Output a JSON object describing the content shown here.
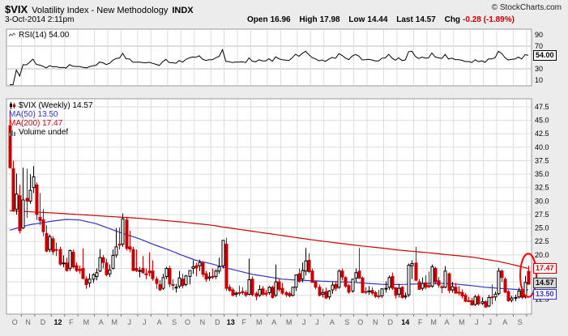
{
  "header": {
    "symbol": "$VIX",
    "name": "Volatility Index - New Methodology",
    "exchange": "INDX",
    "credit": "© StockCharts.com",
    "datetime": "3-Oct-2014 2:11pm",
    "quote": {
      "open_label": "Open",
      "open": "16.96",
      "high_label": "High",
      "high": "17.98",
      "low_label": "Low",
      "low": "14.44",
      "last_label": "Last",
      "last": "14.57",
      "chg_label": "Chg",
      "chg": "-0.28 (-1.89%)"
    }
  },
  "rsi_panel": {
    "legend": "RSI(14) 54.00",
    "value_box": "54.00"
  },
  "price_panel": {
    "legend_main": "$VIX (Weekly) 14.57",
    "legend_ma50": "MA(50) 13.50",
    "legend_ma200": "MA(200) 17.47",
    "legend_volume": "Volume undef",
    "box_ma200": "17.47",
    "box_last": "14.57",
    "box_ma50": "13.50"
  },
  "colors": {
    "up": "#000000",
    "down": "#cc0000",
    "ma50": "#3333cc",
    "ma200": "#cc0000",
    "rsi": "#000000",
    "annotation": "#ff0000",
    "grid": "#dddddd",
    "band": "#bbbbbb",
    "panel_border": "#999999",
    "neg": "#cc0000"
  },
  "chart_data": {
    "type": "candlestick",
    "title": "$VIX (Weekly)",
    "symbol": "$VIX",
    "period": "Weekly",
    "last": 14.57,
    "ma50_last": 13.5,
    "ma200_last": 17.47,
    "rsi_period": 14,
    "rsi_last": 54.0,
    "ylim": [
      9,
      49
    ],
    "grid_step": 2.5,
    "price_ticks": [
      47.5,
      45.0,
      42.5,
      40.0,
      37.5,
      35.0,
      32.5,
      30.0,
      27.5,
      25.0,
      22.5,
      20.0,
      12.5
    ],
    "rsi_ticks": [
      90,
      70,
      30,
      10
    ],
    "rsi_bands": [
      70,
      30
    ],
    "months": [
      {
        "label": "O",
        "weeks": 4,
        "year": false
      },
      {
        "label": "N",
        "weeks": 4,
        "year": false
      },
      {
        "label": "D",
        "weeks": 5,
        "year": false
      },
      {
        "label": "12",
        "weeks": 4,
        "year": true
      },
      {
        "label": "F",
        "weeks": 4,
        "year": false
      },
      {
        "label": "M",
        "weeks": 5,
        "year": false
      },
      {
        "label": "A",
        "weeks": 4,
        "year": false
      },
      {
        "label": "M",
        "weeks": 4,
        "year": false
      },
      {
        "label": "J",
        "weeks": 5,
        "year": false
      },
      {
        "label": "J",
        "weeks": 4,
        "year": false
      },
      {
        "label": "A",
        "weeks": 5,
        "year": false
      },
      {
        "label": "S",
        "weeks": 4,
        "year": false
      },
      {
        "label": "O",
        "weeks": 4,
        "year": false
      },
      {
        "label": "N",
        "weeks": 5,
        "year": false
      },
      {
        "label": "D",
        "weeks": 4,
        "year": false
      },
      {
        "label": "13",
        "weeks": 4,
        "year": true
      },
      {
        "label": "F",
        "weeks": 4,
        "year": false
      },
      {
        "label": "M",
        "weeks": 5,
        "year": false
      },
      {
        "label": "A",
        "weeks": 4,
        "year": false
      },
      {
        "label": "M",
        "weeks": 5,
        "year": false
      },
      {
        "label": "J",
        "weeks": 4,
        "year": false
      },
      {
        "label": "J",
        "weeks": 4,
        "year": false
      },
      {
        "label": "A",
        "weeks": 5,
        "year": false
      },
      {
        "label": "S",
        "weeks": 4,
        "year": false
      },
      {
        "label": "O",
        "weeks": 4,
        "year": false
      },
      {
        "label": "N",
        "weeks": 5,
        "year": false
      },
      {
        "label": "D",
        "weeks": 4,
        "year": false
      },
      {
        "label": "14",
        "weeks": 5,
        "year": true
      },
      {
        "label": "F",
        "weeks": 4,
        "year": false
      },
      {
        "label": "M",
        "weeks": 4,
        "year": false
      },
      {
        "label": "A",
        "weeks": 4,
        "year": false
      },
      {
        "label": "M",
        "weeks": 5,
        "year": false
      },
      {
        "label": "J",
        "weeks": 4,
        "year": false
      },
      {
        "label": "J",
        "weeks": 4,
        "year": false
      },
      {
        "label": "A",
        "weeks": 5,
        "year": false
      },
      {
        "label": "S",
        "weeks": 4,
        "year": false
      },
      {
        "label": "",
        "weeks": 1,
        "year": false
      }
    ],
    "ohlc": [
      [
        44.0,
        46.9,
        36.0,
        36.2
      ],
      [
        36.0,
        37.5,
        28.0,
        28.2
      ],
      [
        28.5,
        35.1,
        27.5,
        31.3
      ],
      [
        31.0,
        33.0,
        24.0,
        24.5
      ],
      [
        25.0,
        36.2,
        24.8,
        30.2
      ],
      [
        30.5,
        36.0,
        26.9,
        30.0
      ],
      [
        30.0,
        35.0,
        29.5,
        32.0
      ],
      [
        32.5,
        36.5,
        31.5,
        34.5
      ],
      [
        33.0,
        33.5,
        26.5,
        27.5
      ],
      [
        27.0,
        31.5,
        25.5,
        26.4
      ],
      [
        26.5,
        28.5,
        23.5,
        24.3
      ],
      [
        24.0,
        25.5,
        20.5,
        20.7
      ],
      [
        21.0,
        23.8,
        20.5,
        23.4
      ],
      [
        23.0,
        23.5,
        20.0,
        20.6
      ],
      [
        21.0,
        22.3,
        19.8,
        20.9
      ],
      [
        21.0,
        21.5,
        18.0,
        18.3
      ],
      [
        18.5,
        19.9,
        17.7,
        18.5
      ],
      [
        18.5,
        19.5,
        16.9,
        17.1
      ],
      [
        17.5,
        21.0,
        17.0,
        20.8
      ],
      [
        20.5,
        21.0,
        17.5,
        17.8
      ],
      [
        18.0,
        18.6,
        16.8,
        17.1
      ],
      [
        17.3,
        18.0,
        16.5,
        17.1
      ],
      [
        17.5,
        21.2,
        15.5,
        15.6
      ],
      [
        15.5,
        16.0,
        13.7,
        14.5
      ],
      [
        14.8,
        16.5,
        14.0,
        15.5
      ],
      [
        15.5,
        16.6,
        14.8,
        16.3
      ],
      [
        16.0,
        17.5,
        15.3,
        16.7
      ],
      [
        17.0,
        21.1,
        16.8,
        19.5
      ],
      [
        19.5,
        20.0,
        17.5,
        18.6
      ],
      [
        18.5,
        19.3,
        16.0,
        16.3
      ],
      [
        16.5,
        18.2,
        15.9,
        17.2
      ],
      [
        17.5,
        21.0,
        17.3,
        19.9
      ],
      [
        20.0,
        25.0,
        19.5,
        21.5
      ],
      [
        22.0,
        25.1,
        21.0,
        21.8
      ],
      [
        22.0,
        27.7,
        21.5,
        26.7
      ],
      [
        26.5,
        27.0,
        20.8,
        21.2
      ],
      [
        21.5,
        24.5,
        20.5,
        21.1
      ],
      [
        21.0,
        21.5,
        17.0,
        17.1
      ],
      [
        17.5,
        21.0,
        16.8,
        17.1
      ],
      [
        17.0,
        17.8,
        15.8,
        17.1
      ],
      [
        17.5,
        19.8,
        16.5,
        16.7
      ],
      [
        16.5,
        17.5,
        15.5,
        16.3
      ],
      [
        17.0,
        20.5,
        16.0,
        16.7
      ],
      [
        17.0,
        19.0,
        15.2,
        15.6
      ],
      [
        15.5,
        16.0,
        13.7,
        14.7
      ],
      [
        14.5,
        15.3,
        13.3,
        13.5
      ],
      [
        13.8,
        16.5,
        13.5,
        15.8
      ],
      [
        16.0,
        17.8,
        15.5,
        17.5
      ],
      [
        17.5,
        18.0,
        14.0,
        14.6
      ],
      [
        14.5,
        15.5,
        13.5,
        14.4
      ],
      [
        14.0,
        14.6,
        13.0,
        14.0
      ],
      [
        14.2,
        17.0,
        13.8,
        15.7
      ],
      [
        15.5,
        16.5,
        13.8,
        14.3
      ],
      [
        14.5,
        16.3,
        14.2,
        16.1
      ],
      [
        16.0,
        17.1,
        14.5,
        17.1
      ],
      [
        17.5,
        19.0,
        16.5,
        17.8
      ],
      [
        18.0,
        18.5,
        16.0,
        17.6
      ],
      [
        18.0,
        19.1,
        17.0,
        18.6
      ],
      [
        18.5,
        18.8,
        15.9,
        16.4
      ],
      [
        16.5,
        17.0,
        15.0,
        15.5
      ],
      [
        15.7,
        16.8,
        15.2,
        15.9
      ],
      [
        16.0,
        17.5,
        15.5,
        15.9
      ],
      [
        16.0,
        17.3,
        15.5,
        17.0
      ],
      [
        17.0,
        19.5,
        16.5,
        17.8
      ],
      [
        18.0,
        22.7,
        17.5,
        22.7
      ],
      [
        22.0,
        23.2,
        13.3,
        13.8
      ],
      [
        14.0,
        14.5,
        13.2,
        13.4
      ],
      [
        13.5,
        13.9,
        12.3,
        12.5
      ],
      [
        12.7,
        13.2,
        12.2,
        12.9
      ],
      [
        13.0,
        14.3,
        12.4,
        12.9
      ],
      [
        13.2,
        14.0,
        12.6,
        13.0
      ],
      [
        13.0,
        13.5,
        12.2,
        12.5
      ],
      [
        12.7,
        19.3,
        12.5,
        15.4
      ],
      [
        15.5,
        16.0,
        12.3,
        12.6
      ],
      [
        12.8,
        13.2,
        11.6,
        12.3
      ],
      [
        12.5,
        14.4,
        12.2,
        13.6
      ],
      [
        13.7,
        14.2,
        12.4,
        12.7
      ],
      [
        12.9,
        13.5,
        12.3,
        12.7
      ],
      [
        13.0,
        14.2,
        12.6,
        14.0
      ],
      [
        14.0,
        14.3,
        11.9,
        12.1
      ],
      [
        12.5,
        18.2,
        12.2,
        15.0
      ],
      [
        15.0,
        15.5,
        13.2,
        13.6
      ],
      [
        13.8,
        14.8,
        12.6,
        12.9
      ],
      [
        13.0,
        13.3,
        12.2,
        12.6
      ],
      [
        12.8,
        13.2,
        12.1,
        12.4
      ],
      [
        12.5,
        14.1,
        12.3,
        14.0
      ],
      [
        14.0,
        16.3,
        13.3,
        16.3
      ],
      [
        16.5,
        17.5,
        14.8,
        15.1
      ],
      [
        15.5,
        18.6,
        14.9,
        17.1
      ],
      [
        17.0,
        21.3,
        16.2,
        18.9
      ],
      [
        19.0,
        20.3,
        16.6,
        16.9
      ],
      [
        17.0,
        17.5,
        14.8,
        14.9
      ],
      [
        15.0,
        15.2,
        13.6,
        14.0
      ],
      [
        14.0,
        14.5,
        12.3,
        12.5
      ],
      [
        12.7,
        13.7,
        12.1,
        13.0
      ],
      [
        13.2,
        13.9,
        11.8,
        12.0
      ],
      [
        12.2,
        13.5,
        11.7,
        13.3
      ],
      [
        13.5,
        15.0,
        12.8,
        14.4
      ],
      [
        14.5,
        15.1,
        13.3,
        13.8
      ],
      [
        14.0,
        17.3,
        13.7,
        17.0
      ],
      [
        17.0,
        17.5,
        15.3,
        15.9
      ],
      [
        15.8,
        16.0,
        13.9,
        14.2
      ],
      [
        14.3,
        14.6,
        12.8,
        13.1
      ],
      [
        13.3,
        15.0,
        13.0,
        15.5
      ],
      [
        15.7,
        17.5,
        15.0,
        16.7
      ],
      [
        17.0,
        21.3,
        15.5,
        15.7
      ],
      [
        15.7,
        16.0,
        12.9,
        13.0
      ],
      [
        13.2,
        14.0,
        12.7,
        13.1
      ],
      [
        13.3,
        14.2,
        12.6,
        13.3
      ],
      [
        13.4,
        14.0,
        12.5,
        12.9
      ],
      [
        13.0,
        13.3,
        12.0,
        12.3
      ],
      [
        12.4,
        13.5,
        11.9,
        12.3
      ],
      [
        12.4,
        13.8,
        12.0,
        13.7
      ],
      [
        13.8,
        15.1,
        13.0,
        13.8
      ],
      [
        14.0,
        16.2,
        13.5,
        15.8
      ],
      [
        16.0,
        16.7,
        13.5,
        13.8
      ],
      [
        13.9,
        14.0,
        11.9,
        12.5
      ],
      [
        12.7,
        14.6,
        12.1,
        13.8
      ],
      [
        14.0,
        14.2,
        11.9,
        12.1
      ],
      [
        12.2,
        13.0,
        11.8,
        12.4
      ],
      [
        12.6,
        18.4,
        12.2,
        18.1
      ],
      [
        18.0,
        19.0,
        15.5,
        18.4
      ],
      [
        18.5,
        21.5,
        15.1,
        15.3
      ],
      [
        15.0,
        15.5,
        13.5,
        13.6
      ],
      [
        13.8,
        15.8,
        13.4,
        14.7
      ],
      [
        14.8,
        16.2,
        13.6,
        14.0
      ],
      [
        14.3,
        16.9,
        13.8,
        14.1
      ],
      [
        14.2,
        18.2,
        13.9,
        17.8
      ],
      [
        17.5,
        17.8,
        14.5,
        15.0
      ],
      [
        15.2,
        15.9,
        13.9,
        14.4
      ],
      [
        14.1,
        14.4,
        12.9,
        13.9
      ],
      [
        14.0,
        17.9,
        13.8,
        17.0
      ],
      [
        16.5,
        16.7,
        12.9,
        13.4
      ],
      [
        13.5,
        15.0,
        13.0,
        14.1
      ],
      [
        14.0,
        14.8,
        12.9,
        12.9
      ],
      [
        13.1,
        14.2,
        12.5,
        12.9
      ],
      [
        13.0,
        13.6,
        11.9,
        12.4
      ],
      [
        12.5,
        12.9,
        11.2,
        11.4
      ],
      [
        11.5,
        12.2,
        11.2,
        11.4
      ],
      [
        11.5,
        12.0,
        10.6,
        10.7
      ],
      [
        10.8,
        12.6,
        10.5,
        12.2
      ],
      [
        12.3,
        12.7,
        10.6,
        10.9
      ],
      [
        11.0,
        12.1,
        10.7,
        11.3
      ],
      [
        11.3,
        11.6,
        10.2,
        10.3
      ],
      [
        10.5,
        12.6,
        10.3,
        12.1
      ],
      [
        12.2,
        14.5,
        10.8,
        12.1
      ],
      [
        12.2,
        13.2,
        11.5,
        12.7
      ],
      [
        12.8,
        17.6,
        12.5,
        17.0
      ],
      [
        17.0,
        17.3,
        15.0,
        15.8
      ],
      [
        15.5,
        15.9,
        12.9,
        13.1
      ],
      [
        13.2,
        13.5,
        11.3,
        11.5
      ],
      [
        11.6,
        12.4,
        11.2,
        12.0
      ],
      [
        12.1,
        12.6,
        11.4,
        12.1
      ],
      [
        12.2,
        13.9,
        11.9,
        13.3
      ],
      [
        13.4,
        14.0,
        11.8,
        12.1
      ],
      [
        12.2,
        16.1,
        11.9,
        14.9
      ],
      [
        16.96,
        17.98,
        14.44,
        14.57
      ]
    ],
    "ma50_anchors": [
      [
        0,
        24.6
      ],
      [
        6,
        25.6
      ],
      [
        13,
        26.3
      ],
      [
        17,
        26.6
      ],
      [
        21,
        26.5
      ],
      [
        26,
        25.8
      ],
      [
        30,
        24.9
      ],
      [
        34,
        24.0
      ],
      [
        39,
        23.0
      ],
      [
        43,
        22.0
      ],
      [
        48,
        20.9
      ],
      [
        52,
        19.9
      ],
      [
        56,
        19.0
      ],
      [
        61,
        18.3
      ],
      [
        65,
        17.6
      ],
      [
        69,
        17.0
      ],
      [
        73,
        16.4
      ],
      [
        78,
        15.9
      ],
      [
        82,
        15.5
      ],
      [
        87,
        15.3
      ],
      [
        91,
        15.2
      ],
      [
        95,
        15.1
      ],
      [
        100,
        15.0
      ],
      [
        104,
        14.9
      ],
      [
        108,
        14.7
      ],
      [
        113,
        14.5
      ],
      [
        117,
        14.5
      ],
      [
        122,
        14.6
      ],
      [
        126,
        14.7
      ],
      [
        130,
        14.7
      ],
      [
        134,
        14.6
      ],
      [
        139,
        14.3
      ],
      [
        143,
        14.0
      ],
      [
        147,
        13.8
      ],
      [
        152,
        13.6
      ],
      [
        156,
        13.5
      ]
    ],
    "ma200_anchors": [
      [
        0,
        28.2
      ],
      [
        13,
        27.8
      ],
      [
        26,
        27.3
      ],
      [
        39,
        26.8
      ],
      [
        52,
        26.1
      ],
      [
        61,
        25.5
      ],
      [
        65,
        25.1
      ],
      [
        73,
        24.4
      ],
      [
        82,
        23.6
      ],
      [
        91,
        22.8
      ],
      [
        100,
        22.1
      ],
      [
        104,
        21.8
      ],
      [
        113,
        21.2
      ],
      [
        117,
        20.9
      ],
      [
        126,
        20.4
      ],
      [
        134,
        19.9
      ],
      [
        139,
        19.6
      ],
      [
        143,
        19.2
      ],
      [
        147,
        18.8
      ],
      [
        152,
        18.1
      ],
      [
        156,
        17.47
      ]
    ],
    "annotation": {
      "shape": "ellipse",
      "target": "final weekly candle poking above the 200-week MA",
      "color": "#ff0000"
    }
  }
}
